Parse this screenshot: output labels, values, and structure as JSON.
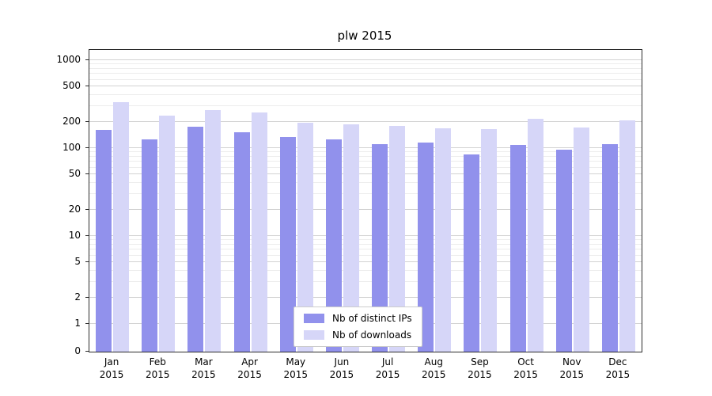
{
  "chart_data": {
    "type": "bar",
    "title": "plw 2015",
    "year": "2015",
    "categories": [
      "Jan",
      "Feb",
      "Mar",
      "Apr",
      "May",
      "Jun",
      "Jul",
      "Aug",
      "Sep",
      "Oct",
      "Nov",
      "Dec"
    ],
    "series": [
      {
        "name": "Nb of distinct IPs",
        "color": "#9191ec",
        "values": [
          160,
          125,
          175,
          150,
          135,
          125,
          112,
          115,
          85,
          108,
          95,
          110
        ]
      },
      {
        "name": "Nb of downloads",
        "color": "#d6d6f8",
        "values": [
          330,
          235,
          270,
          255,
          195,
          185,
          178,
          168,
          165,
          215,
          170,
          205
        ]
      }
    ],
    "y_scale": "symlog",
    "y_ticks": [
      0,
      1,
      2,
      5,
      10,
      20,
      50,
      100,
      200,
      500,
      1000
    ],
    "ylim": [
      0,
      1000
    ],
    "grid": "on",
    "legend_position": "bottom-center",
    "colors": {
      "grid_major": "#d2d2d2",
      "grid_minor": "#ededed",
      "spine": "#2b2b2b",
      "background": "#ffffff"
    }
  }
}
